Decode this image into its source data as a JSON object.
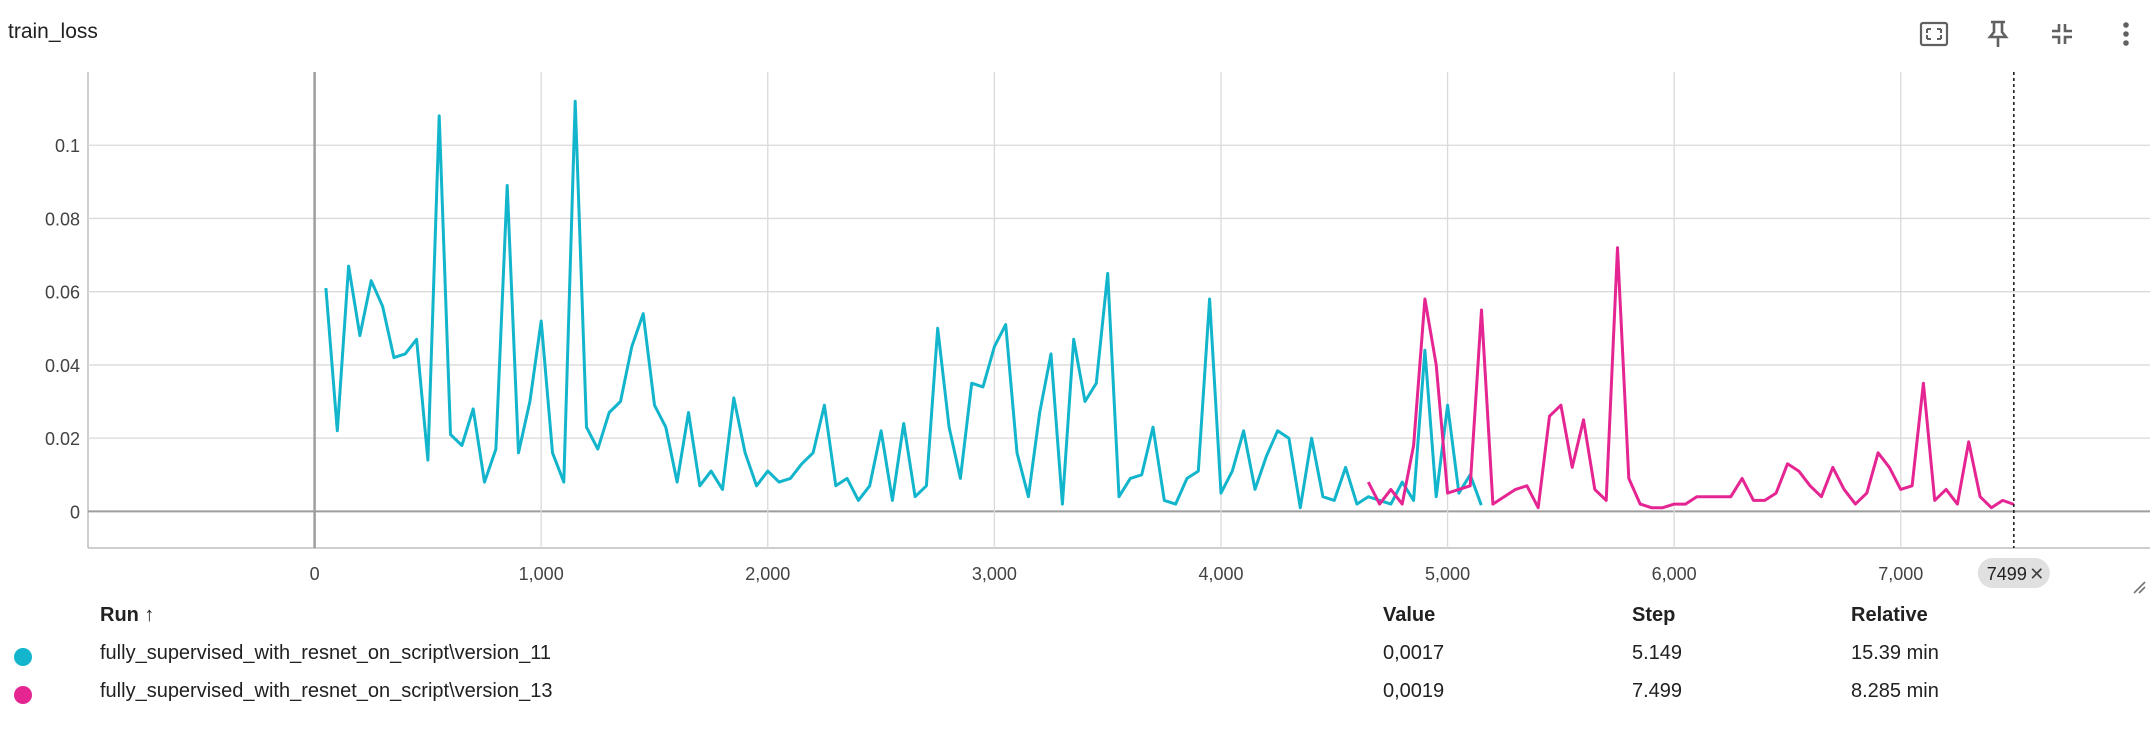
{
  "header": {
    "title": "train_loss"
  },
  "toolbar": {
    "icons": [
      "fit-to-screen-icon",
      "pin-icon",
      "collapse-icon",
      "more-vert-icon"
    ]
  },
  "table": {
    "columns": {
      "run": "Run ↑",
      "value": "Value",
      "step": "Step",
      "relative": "Relative"
    },
    "rows": [
      {
        "run": "fully_supervised_with_resnet_on_script\\version_11",
        "value": "0,0017",
        "step": "5.149",
        "relative": "15.39 min",
        "color": "#12b5cb"
      },
      {
        "run": "fully_supervised_with_resnet_on_script\\version_13",
        "value": "0,0019",
        "step": "7.499",
        "relative": "8.285 min",
        "color": "#e52592"
      }
    ]
  },
  "cursor": {
    "label": "7499",
    "step": 7499
  },
  "chart_data": {
    "type": "line",
    "title": "train_loss",
    "xlabel": "",
    "ylabel": "",
    "xlim": [
      -1000,
      8100
    ],
    "ylim": [
      -0.01,
      0.12
    ],
    "x_ticks": [
      0,
      1000,
      2000,
      3000,
      4000,
      5000,
      6000,
      7000
    ],
    "x_tick_labels": [
      "0",
      "1,000",
      "2,000",
      "3,000",
      "4,000",
      "5,000",
      "6,000",
      "7,000"
    ],
    "y_ticks": [
      0,
      0.02,
      0.04,
      0.06,
      0.08,
      0.1
    ],
    "y_tick_labels": [
      "0",
      "0.02",
      "0.04",
      "0.06",
      "0.08",
      "0.1"
    ],
    "grid": true,
    "series": [
      {
        "name": "fully_supervised_with_resnet_on_script\\version_11",
        "color": "#12b5cb",
        "x": [
          50,
          100,
          150,
          200,
          250,
          300,
          350,
          400,
          450,
          500,
          550,
          600,
          650,
          700,
          750,
          800,
          850,
          900,
          950,
          1000,
          1050,
          1100,
          1150,
          1200,
          1250,
          1300,
          1350,
          1400,
          1450,
          1500,
          1550,
          1600,
          1650,
          1700,
          1750,
          1800,
          1850,
          1900,
          1950,
          2000,
          2050,
          2100,
          2150,
          2200,
          2250,
          2300,
          2350,
          2400,
          2450,
          2500,
          2550,
          2600,
          2650,
          2700,
          2750,
          2800,
          2850,
          2900,
          2950,
          3000,
          3050,
          3100,
          3150,
          3200,
          3250,
          3300,
          3350,
          3400,
          3450,
          3500,
          3550,
          3600,
          3650,
          3700,
          3750,
          3800,
          3850,
          3900,
          3950,
          4000,
          4050,
          4100,
          4150,
          4200,
          4250,
          4300,
          4350,
          4400,
          4450,
          4500,
          4550,
          4600,
          4650,
          4700,
          4750,
          4800,
          4850,
          4900,
          4950,
          5000,
          5050,
          5100,
          5149
        ],
        "y": [
          0.061,
          0.022,
          0.067,
          0.048,
          0.063,
          0.056,
          0.042,
          0.043,
          0.047,
          0.014,
          0.108,
          0.021,
          0.018,
          0.028,
          0.008,
          0.017,
          0.089,
          0.016,
          0.03,
          0.052,
          0.016,
          0.008,
          0.112,
          0.023,
          0.017,
          0.027,
          0.03,
          0.045,
          0.054,
          0.029,
          0.023,
          0.008,
          0.027,
          0.007,
          0.011,
          0.006,
          0.031,
          0.016,
          0.007,
          0.011,
          0.008,
          0.009,
          0.013,
          0.016,
          0.029,
          0.007,
          0.009,
          0.003,
          0.007,
          0.022,
          0.003,
          0.024,
          0.004,
          0.007,
          0.05,
          0.023,
          0.009,
          0.035,
          0.034,
          0.045,
          0.051,
          0.016,
          0.004,
          0.027,
          0.043,
          0.002,
          0.047,
          0.03,
          0.035,
          0.065,
          0.004,
          0.009,
          0.01,
          0.023,
          0.003,
          0.002,
          0.009,
          0.011,
          0.058,
          0.005,
          0.011,
          0.022,
          0.006,
          0.015,
          0.022,
          0.02,
          0.001,
          0.02,
          0.004,
          0.003,
          0.012,
          0.002,
          0.004,
          0.003,
          0.002,
          0.008,
          0.003,
          0.044,
          0.004,
          0.029,
          0.005,
          0.01,
          0.0017
        ]
      },
      {
        "name": "fully_supervised_with_resnet_on_script\\version_13",
        "color": "#e52592",
        "x": [
          4650,
          4700,
          4750,
          4800,
          4850,
          4900,
          4950,
          5000,
          5050,
          5100,
          5150,
          5200,
          5250,
          5300,
          5350,
          5400,
          5450,
          5500,
          5550,
          5600,
          5650,
          5700,
          5750,
          5800,
          5850,
          5900,
          5950,
          6000,
          6050,
          6100,
          6150,
          6200,
          6250,
          6300,
          6350,
          6400,
          6450,
          6500,
          6550,
          6600,
          6650,
          6700,
          6750,
          6800,
          6850,
          6900,
          6950,
          7000,
          7050,
          7100,
          7150,
          7200,
          7250,
          7300,
          7350,
          7400,
          7450,
          7499
        ],
        "y": [
          0.008,
          0.002,
          0.006,
          0.002,
          0.018,
          0.058,
          0.04,
          0.005,
          0.006,
          0.007,
          0.055,
          0.002,
          0.004,
          0.006,
          0.007,
          0.001,
          0.026,
          0.029,
          0.012,
          0.025,
          0.006,
          0.003,
          0.072,
          0.009,
          0.002,
          0.001,
          0.001,
          0.002,
          0.002,
          0.004,
          0.004,
          0.004,
          0.004,
          0.009,
          0.003,
          0.003,
          0.005,
          0.013,
          0.011,
          0.007,
          0.004,
          0.012,
          0.006,
          0.002,
          0.005,
          0.016,
          0.012,
          0.006,
          0.007,
          0.035,
          0.003,
          0.006,
          0.002,
          0.019,
          0.004,
          0.001,
          0.003,
          0.0019
        ]
      }
    ]
  }
}
